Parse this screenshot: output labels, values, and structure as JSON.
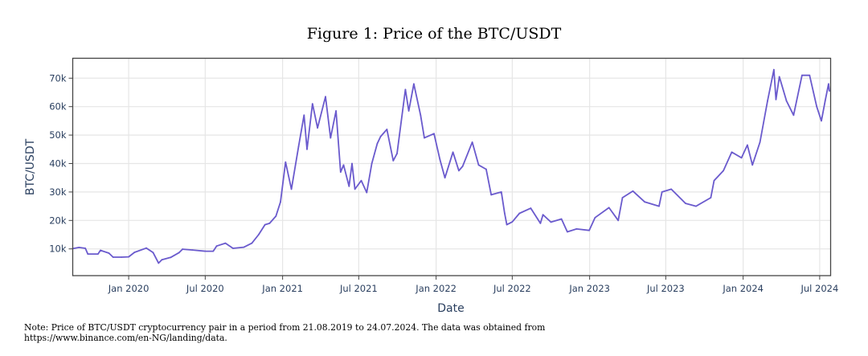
{
  "figure": {
    "title": "Figure 1: Price of the BTC/USDT",
    "note_line1": "Note: Price of BTC/USDT cryptocurrency pair in a period from 21.08.2019 to 24.07.2024. The data was obtained from",
    "note_line2": "https://www.binance.com/en-NG/landing/data."
  },
  "chart_data": {
    "type": "line",
    "title": "Figure 1: Price of the BTC/USDT",
    "xlabel": "Date",
    "ylabel": "BTC/USDT",
    "xlim": [
      "2019-08-21",
      "2024-07-27"
    ],
    "ylim": [
      600,
      77000
    ],
    "grid": true,
    "legend": "none",
    "line_color": "#6a5acd",
    "x_ticks": [
      {
        "date": "2020-01-01",
        "label": "Jan 2020"
      },
      {
        "date": "2020-07-01",
        "label": "Jul 2020"
      },
      {
        "date": "2021-01-01",
        "label": "Jan 2021"
      },
      {
        "date": "2021-07-01",
        "label": "Jul 2021"
      },
      {
        "date": "2022-01-01",
        "label": "Jan 2022"
      },
      {
        "date": "2022-07-01",
        "label": "Jul 2022"
      },
      {
        "date": "2023-01-01",
        "label": "Jan 2023"
      },
      {
        "date": "2023-07-01",
        "label": "Jul 2023"
      },
      {
        "date": "2024-01-01",
        "label": "Jan 2024"
      },
      {
        "date": "2024-07-01",
        "label": "Jul 2024"
      }
    ],
    "y_ticks": [
      {
        "value": 10000,
        "label": "10k"
      },
      {
        "value": 20000,
        "label": "20k"
      },
      {
        "value": 30000,
        "label": "30k"
      },
      {
        "value": 40000,
        "label": "40k"
      },
      {
        "value": 50000,
        "label": "50k"
      },
      {
        "value": 60000,
        "label": "60k"
      },
      {
        "value": 70000,
        "label": "70k"
      }
    ],
    "series": [
      {
        "x": [
          "2019-08-21",
          "2019-09-05",
          "2019-09-20",
          "2019-09-26",
          "2019-10-20",
          "2019-10-26",
          "2019-11-15",
          "2019-11-25",
          "2019-12-15",
          "2020-01-01",
          "2020-01-15",
          "2020-02-12",
          "2020-02-28",
          "2020-03-12",
          "2020-03-20",
          "2020-04-10",
          "2020-04-30",
          "2020-05-08",
          "2020-06-01",
          "2020-07-01",
          "2020-07-20",
          "2020-07-28",
          "2020-08-18",
          "2020-09-05",
          "2020-10-01",
          "2020-10-20",
          "2020-11-05",
          "2020-11-20",
          "2020-12-01",
          "2020-12-16",
          "2020-12-27",
          "2021-01-08",
          "2021-01-22",
          "2021-02-08",
          "2021-02-21",
          "2021-02-28",
          "2021-03-13",
          "2021-03-25",
          "2021-04-13",
          "2021-04-25",
          "2021-05-08",
          "2021-05-19",
          "2021-05-26",
          "2021-06-08",
          "2021-06-15",
          "2021-06-22",
          "2021-07-07",
          "2021-07-20",
          "2021-08-01",
          "2021-08-14",
          "2021-08-22",
          "2021-09-06",
          "2021-09-21",
          "2021-09-30",
          "2021-10-20",
          "2021-10-28",
          "2021-11-09",
          "2021-11-25",
          "2021-12-04",
          "2021-12-27",
          "2022-01-10",
          "2022-01-22",
          "2022-02-10",
          "2022-02-24",
          "2022-03-05",
          "2022-03-28",
          "2022-04-12",
          "2022-04-30",
          "2022-05-12",
          "2022-06-05",
          "2022-06-13",
          "2022-06-18",
          "2022-07-01",
          "2022-07-18",
          "2022-08-14",
          "2022-09-06",
          "2022-09-12",
          "2022-10-01",
          "2022-10-26",
          "2022-11-09",
          "2022-12-01",
          "2022-12-31",
          "2023-01-14",
          "2023-02-16",
          "2023-03-10",
          "2023-03-20",
          "2023-04-14",
          "2023-05-12",
          "2023-06-15",
          "2023-06-22",
          "2023-07-14",
          "2023-08-17",
          "2023-09-11",
          "2023-10-16",
          "2023-10-24",
          "2023-11-15",
          "2023-12-05",
          "2023-12-28",
          "2024-01-11",
          "2024-01-23",
          "2024-02-10",
          "2024-02-28",
          "2024-03-14",
          "2024-03-19",
          "2024-03-27",
          "2024-04-13",
          "2024-04-30",
          "2024-05-20",
          "2024-06-07",
          "2024-06-24",
          "2024-07-05",
          "2024-07-14",
          "2024-07-22",
          "2024-07-24"
        ],
        "y": [
          10100,
          10500,
          10200,
          8200,
          8200,
          9500,
          8500,
          7100,
          7100,
          7200,
          8800,
          10300,
          8700,
          5000,
          6200,
          7000,
          8700,
          9900,
          9600,
          9200,
          9200,
          11000,
          12000,
          10200,
          10600,
          12000,
          15000,
          18500,
          19000,
          21500,
          26500,
          40500,
          31000,
          46000,
          57000,
          45000,
          61000,
          52500,
          63500,
          49000,
          58500,
          37000,
          39500,
          32000,
          40000,
          31000,
          34000,
          29800,
          40000,
          47000,
          49500,
          52000,
          41000,
          43500,
          66000,
          58500,
          68000,
          57000,
          49000,
          50500,
          41500,
          35000,
          44000,
          37500,
          39000,
          47500,
          39500,
          38000,
          29000,
          30000,
          22500,
          18500,
          19500,
          22500,
          24300,
          19000,
          22000,
          19400,
          20500,
          16000,
          17000,
          16500,
          21000,
          24500,
          20000,
          28000,
          30300,
          26500,
          25000,
          30000,
          31000,
          26000,
          25000,
          28000,
          34000,
          37500,
          44000,
          42000,
          46500,
          39500,
          47500,
          62000,
          73000,
          62500,
          70500,
          62000,
          57000,
          71000,
          71000,
          60000,
          55000,
          62000,
          68000,
          65500
        ]
      }
    ]
  }
}
